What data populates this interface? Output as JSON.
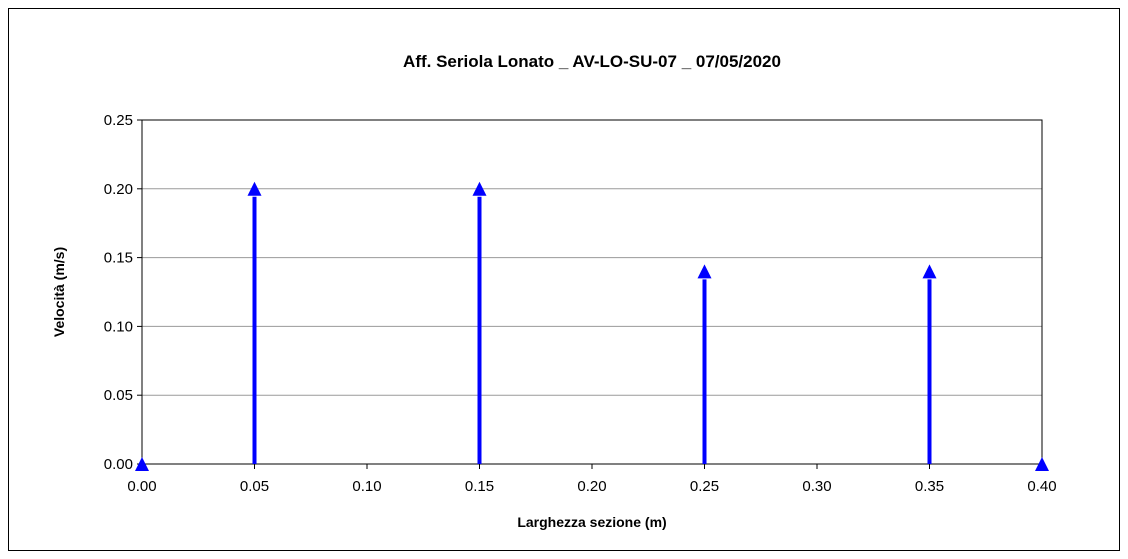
{
  "chart_data": {
    "type": "line",
    "title": "Aff. Seriola Lonato _ AV-LO-SU-07 _ 07/05/2020",
    "xlabel": "Larghezza sezione (m)",
    "ylabel": "Velocità (m/s)",
    "xlim": [
      0,
      0.4
    ],
    "ylim": [
      0,
      0.25
    ],
    "x_ticks": [
      "0.00",
      "0.05",
      "0.10",
      "0.15",
      "0.20",
      "0.25",
      "0.30",
      "0.35",
      "0.40"
    ],
    "y_ticks": [
      "0.00",
      "0.05",
      "0.10",
      "0.15",
      "0.20",
      "0.25"
    ],
    "grid": "horizontal",
    "series": [
      {
        "x": [
          0.0,
          0.05,
          0.15,
          0.25,
          0.35,
          0.4
        ],
        "y": [
          0.0,
          0.2,
          0.2,
          0.14,
          0.14,
          0.0
        ],
        "style": "vertical arrows from zero",
        "color": "#0000ff"
      }
    ]
  }
}
